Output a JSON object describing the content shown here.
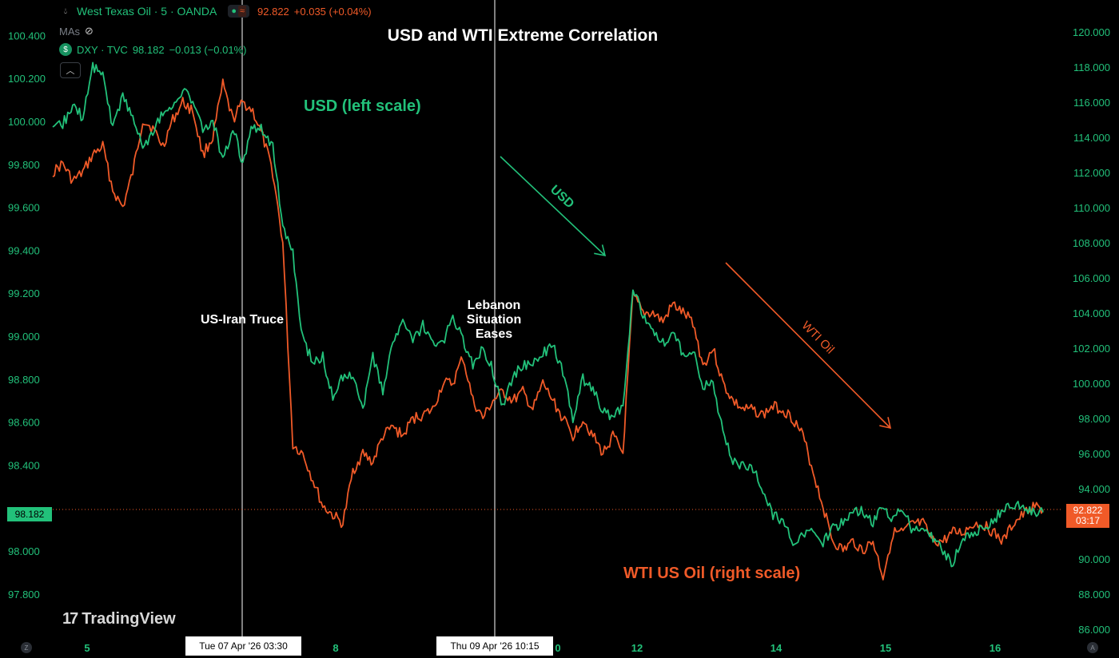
{
  "legend": {
    "symbol1": {
      "name": "West Texas Oil · 5 · OANDA",
      "price": "92.822",
      "change": "+0.035 (+0.04%)",
      "icon": "droplet-icon"
    },
    "indicators_label": "MAs",
    "symbol2": {
      "name": "DXY · TVC",
      "price": "98.182",
      "change": "−0.013 (−0.01%)",
      "icon": "dollar-icon"
    },
    "collapse_icon": "chevron-up-icon"
  },
  "branding": {
    "logo_text": "TradingView",
    "logo_mark": "17"
  },
  "current_prices": {
    "left": "98.182",
    "right_price": "92.822",
    "right_countdown": "03:17"
  },
  "cursor_dates": [
    "Tue 07 Apr '26   03:30",
    "Thu 09 Apr '26   10:15"
  ],
  "corner_buttons": [
    "Z",
    "A"
  ],
  "colors": {
    "usd": "#22c17a",
    "wti": "#f05a28",
    "background": "#000000",
    "annotation": "#ffffff"
  },
  "chart_data": {
    "type": "line",
    "title": "USD and WTI Extreme Correlation",
    "x_tick_labels": [
      "5",
      "8",
      "0",
      "12",
      "14",
      "15",
      "16"
    ],
    "left_axis": {
      "ticks": [
        100.4,
        100.2,
        100.0,
        99.8,
        99.6,
        99.4,
        99.2,
        99.0,
        98.8,
        98.6,
        98.4,
        98.0,
        97.8
      ],
      "range": [
        97.7,
        100.5
      ]
    },
    "right_axis": {
      "ticks": [
        120,
        118,
        116,
        114,
        112,
        110,
        108,
        106,
        104,
        102,
        100,
        98,
        96,
        94,
        90,
        88,
        86
      ],
      "range": [
        85.5,
        120.5
      ]
    },
    "series": [
      {
        "name": "USD (left scale)",
        "axis": "left",
        "values": [
          99.95,
          99.99,
          100.07,
          100.02,
          100.26,
          100.22,
          99.97,
          100.13,
          100.01,
          99.89,
          99.94,
          100.05,
          100.05,
          100.15,
          100.1,
          99.95,
          100.01,
          99.82,
          99.97,
          99.81,
          99.98,
          99.96,
          99.89,
          99.5,
          99.38,
          98.98,
          98.88,
          98.9,
          98.71,
          98.81,
          98.83,
          98.65,
          98.9,
          98.74,
          98.98,
          99.06,
          98.97,
          99.05,
          98.96,
          98.96,
          99.09,
          98.98,
          98.86,
          98.95,
          98.84,
          98.67,
          98.82,
          98.86,
          98.87,
          98.92,
          98.95,
          98.84,
          98.61,
          98.8,
          98.75,
          98.65,
          98.63,
          98.67,
          99.21,
          99.11,
          99.03,
          98.97,
          99.01,
          98.92,
          98.94,
          98.76,
          98.78,
          98.55,
          98.42,
          98.4,
          98.38,
          98.29,
          98.17,
          98.13,
          98.05,
          98.08,
          98.09,
          98.04,
          98.11,
          98.13,
          98.19,
          98.18,
          98.13,
          98.2,
          98.14,
          98.2,
          98.09,
          98.1,
          98.06,
          98.0,
          97.94,
          98.07,
          98.06,
          98.12,
          98.13,
          98.2,
          98.22,
          98.2,
          98.18,
          98.18
        ]
      },
      {
        "name": "WTI US Oil (right scale)",
        "axis": "right",
        "values": [
          112,
          112.5,
          111.5,
          112,
          113,
          113.5,
          111,
          110,
          112,
          115,
          114.5,
          113.5,
          115,
          116,
          115.5,
          113,
          114,
          117,
          115,
          116,
          115.5,
          114,
          112,
          108,
          96.5,
          96,
          94.5,
          93,
          92.5,
          92,
          95,
          96,
          95.5,
          97,
          97.5,
          97,
          98,
          98.2,
          98.5,
          100,
          100,
          101.5,
          99,
          98,
          99,
          99.5,
          99,
          99.5,
          98.5,
          100,
          99,
          98,
          97,
          98,
          97,
          96,
          97,
          96,
          105,
          104,
          104,
          103.5,
          104.5,
          104,
          103.5,
          101,
          102,
          100,
          99,
          98.5,
          98.5,
          98.2,
          98.7,
          98.5,
          98,
          97,
          95,
          93,
          91,
          90.5,
          91,
          90.5,
          91,
          89,
          91.5,
          91.5,
          92,
          92,
          91,
          91,
          91.5,
          91.5,
          92,
          92,
          91.5,
          91,
          92,
          92.5,
          93,
          92.8
        ]
      }
    ],
    "annotations": [
      {
        "text": "US-Iran Truce",
        "type": "vline-label"
      },
      {
        "text": "Lebanon Situation Eases",
        "type": "vline-label"
      },
      {
        "text": "USD (left scale)",
        "type": "series-label",
        "color": "#22c17a"
      },
      {
        "text": "WTI US Oil (right scale)",
        "type": "series-label",
        "color": "#f05a28"
      },
      {
        "text": "USD",
        "type": "trend-arrow",
        "color": "#22c17a"
      },
      {
        "text": "WTI Oil",
        "type": "trend-arrow",
        "color": "#f05a28"
      }
    ]
  }
}
